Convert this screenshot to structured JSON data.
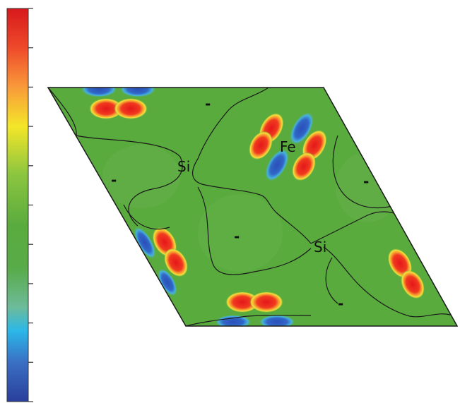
{
  "labels": {
    "si_left": "Si",
    "si_right": "Si",
    "fe": "Fe",
    "minus_top": "-",
    "minus_left": "-",
    "minus_center": "-",
    "minus_right": "-",
    "minus_bottom": "-"
  },
  "colorbar": {
    "colors": [
      "#d7191c",
      "#f46d43",
      "#fdae61",
      "#f4e629",
      "#8dc63f",
      "#5aab3e",
      "#6dbb9a",
      "#2bb8e8",
      "#3a6fc4",
      "#2a3f9a"
    ],
    "tick_count": 11
  },
  "colors": {
    "background_field": "#5aab3e",
    "contour": "#1a1a1a",
    "positive_lobe": "#e8231a",
    "negative_lobe": "#2e5cc8"
  }
}
